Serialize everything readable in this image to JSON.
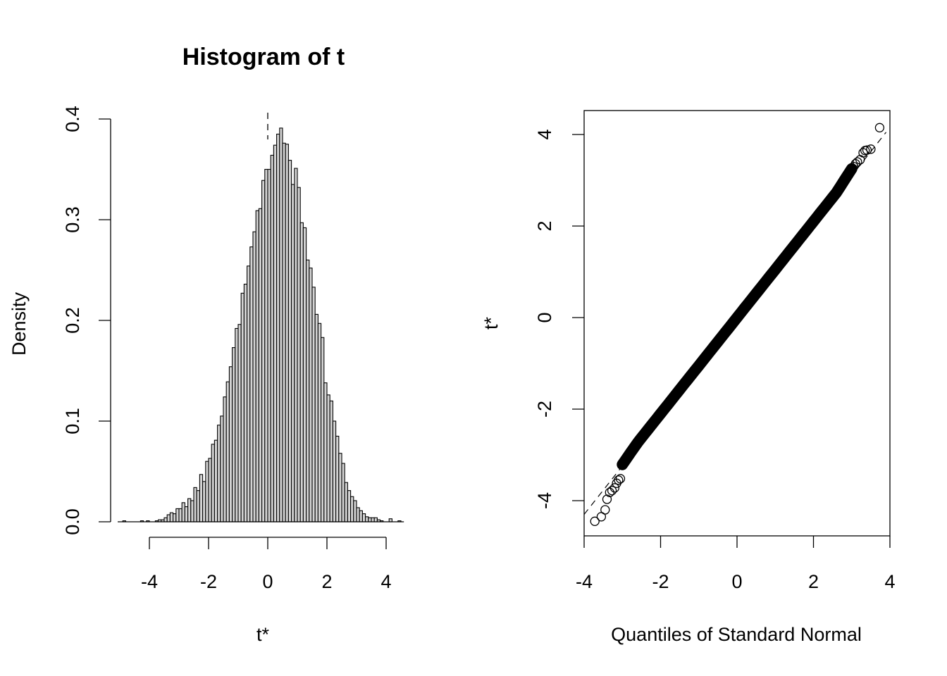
{
  "chart_data": [
    {
      "type": "bar",
      "title": "Histogram of t",
      "xlabel": "t*",
      "ylabel": "Density",
      "xlim": [
        -5,
        4.6
      ],
      "ylim": [
        0,
        0.4
      ],
      "x_ticks": [
        "-4",
        "-2",
        "0",
        "2",
        "4"
      ],
      "y_ticks": [
        "0.0",
        "0.1",
        "0.2",
        "0.3",
        "0.4"
      ],
      "bin_start": -4.9,
      "bin_width": 0.1,
      "densities": [
        0.001,
        0.0,
        0.0,
        0.0,
        0.0,
        0.0,
        0.001,
        0.0,
        0.001,
        0.0,
        0.0,
        0.001,
        0.002,
        0.002,
        0.004,
        0.007,
        0.009,
        0.008,
        0.013,
        0.013,
        0.019,
        0.015,
        0.023,
        0.021,
        0.034,
        0.031,
        0.047,
        0.04,
        0.06,
        0.063,
        0.077,
        0.081,
        0.096,
        0.105,
        0.124,
        0.139,
        0.154,
        0.173,
        0.192,
        0.196,
        0.227,
        0.236,
        0.254,
        0.273,
        0.288,
        0.309,
        0.311,
        0.339,
        0.35,
        0.35,
        0.364,
        0.374,
        0.385,
        0.391,
        0.376,
        0.375,
        0.359,
        0.335,
        0.351,
        0.332,
        0.297,
        0.292,
        0.26,
        0.252,
        0.233,
        0.206,
        0.197,
        0.183,
        0.138,
        0.126,
        0.12,
        0.1,
        0.085,
        0.068,
        0.058,
        0.039,
        0.031,
        0.025,
        0.021,
        0.014,
        0.011,
        0.008,
        0.005,
        0.004,
        0.004,
        0.004,
        0.002,
        0.001,
        0.0,
        0.0,
        0.003,
        0.0,
        0.0,
        0.001
      ]
    },
    {
      "type": "scatter",
      "title": "",
      "xlabel": "Quantiles of Standard Normal",
      "ylabel": "t*",
      "xlim": [
        -4,
        4
      ],
      "ylim": [
        -4.6,
        4.4
      ],
      "x_ticks": [
        "-4",
        "-2",
        "0",
        "2",
        "4"
      ],
      "y_ticks": [
        "-4",
        "-2",
        "0",
        "2",
        "4"
      ],
      "reference_line": "dashed",
      "points": [
        [
          -3.72,
          -4.45
        ],
        [
          -3.55,
          -4.35
        ],
        [
          -3.45,
          -4.2
        ],
        [
          -3.4,
          -3.97
        ],
        [
          -3.33,
          -3.82
        ],
        [
          -3.27,
          -3.78
        ],
        [
          -3.2,
          -3.72
        ],
        [
          -3.15,
          -3.62
        ],
        [
          -3.1,
          -3.55
        ],
        [
          -3.05,
          -3.52
        ],
        [
          3.05,
          3.3
        ],
        [
          3.1,
          3.36
        ],
        [
          3.15,
          3.4
        ],
        [
          3.22,
          3.45
        ],
        [
          3.3,
          3.6
        ],
        [
          3.35,
          3.65
        ],
        [
          3.4,
          3.66
        ],
        [
          3.5,
          3.68
        ],
        [
          3.73,
          4.15
        ]
      ],
      "bulk_range": [
        -3.0,
        3.0
      ]
    }
  ]
}
